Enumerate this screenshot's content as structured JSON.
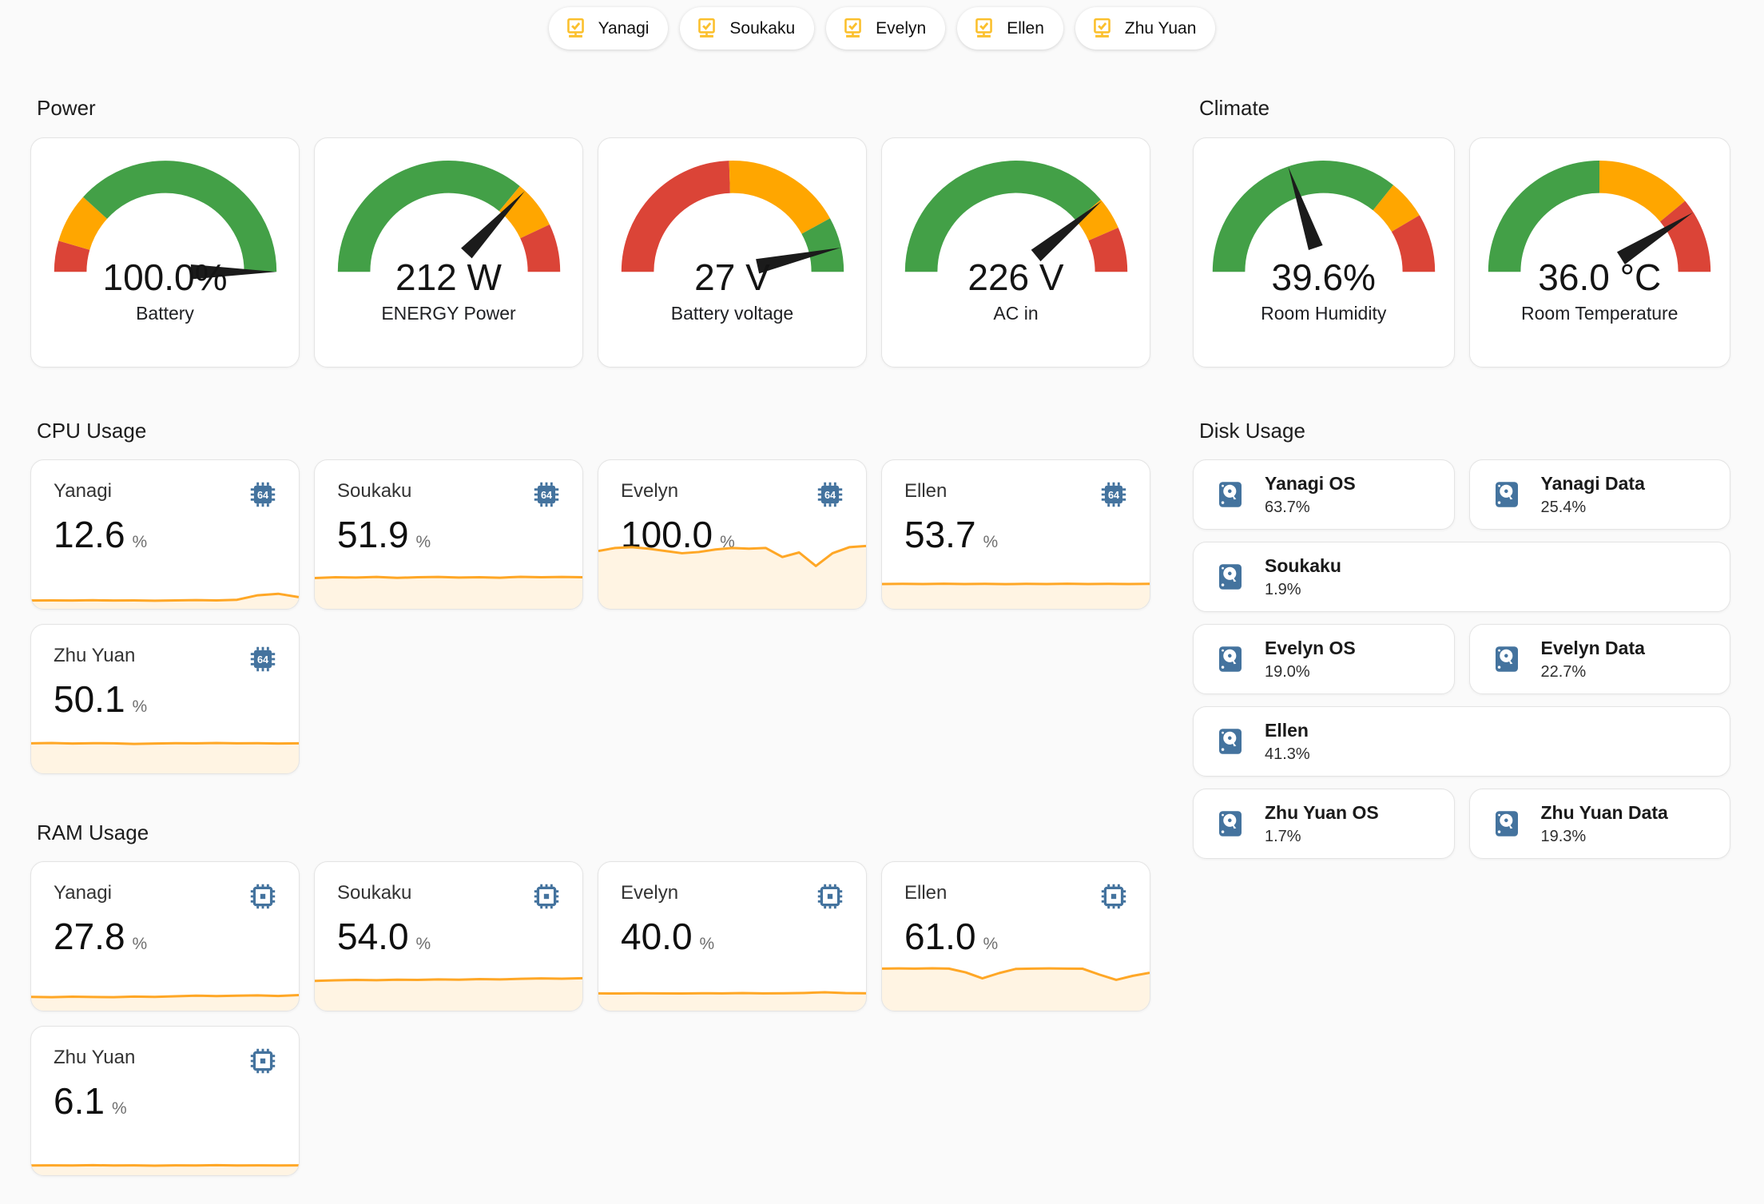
{
  "chips": [
    {
      "label": "Yanagi"
    },
    {
      "label": "Soukaku"
    },
    {
      "label": "Evelyn"
    },
    {
      "label": "Ellen"
    },
    {
      "label": "Zhu Yuan"
    }
  ],
  "sections": {
    "power": "Power",
    "climate": "Climate",
    "cpu": "CPU Usage",
    "disk": "Disk Usage",
    "ram": "RAM Usage"
  },
  "colors": {
    "green": "#43a047",
    "orange": "#ffa600",
    "red": "#db4437",
    "needle": "#1b1b1b",
    "spark": "#ffa726",
    "spark_fill": "rgba(255,167,38,0.13)",
    "icon_blue": "#44739e",
    "chip_yellow": "#fbc02d"
  },
  "icons": {
    "chip": "monitor-check-icon",
    "cpu": "cpu-64-bit-icon",
    "ram": "memory-icon",
    "disk": "harddisk-icon"
  },
  "gauges": {
    "power": [
      {
        "value": "100.0%",
        "name": "Battery",
        "needle": 1.0,
        "segments": [
          [
            "red",
            0,
            0.09
          ],
          [
            "orange",
            0.09,
            0.235
          ],
          [
            "green",
            0.235,
            1
          ]
        ]
      },
      {
        "value": "212 W",
        "name": "ENERGY Power",
        "needle": 0.74,
        "segments": [
          [
            "green",
            0,
            0.72
          ],
          [
            "orange",
            0.72,
            0.86
          ],
          [
            "red",
            0.86,
            1
          ]
        ]
      },
      {
        "value": "27 V",
        "name": "Battery voltage",
        "needle": 0.93,
        "segments": [
          [
            "red",
            0,
            0.49
          ],
          [
            "orange",
            0.49,
            0.84
          ],
          [
            "green",
            0.84,
            1
          ]
        ]
      },
      {
        "value": "226 V",
        "name": "AC in",
        "needle": 0.78,
        "segments": [
          [
            "green",
            0,
            0.775
          ],
          [
            "orange",
            0.775,
            0.87
          ],
          [
            "red",
            0.87,
            1
          ]
        ]
      }
    ],
    "climate": [
      {
        "value": "39.6%",
        "name": "Room Humidity",
        "needle": 0.396,
        "segments": [
          [
            "green",
            0,
            0.715
          ],
          [
            "orange",
            0.715,
            0.83
          ],
          [
            "red",
            0.83,
            1
          ]
        ]
      },
      {
        "value": "36.0 °C",
        "name": "Room Temperature",
        "needle": 0.82,
        "segments": [
          [
            "green",
            0,
            0.5
          ],
          [
            "orange",
            0.5,
            0.78
          ],
          [
            "red",
            0.78,
            1
          ]
        ]
      }
    ]
  },
  "cpu": {
    "cards": [
      {
        "name": "Yanagi",
        "value": "12.6",
        "unit": "%",
        "spark": [
          0.055,
          0.056,
          0.055,
          0.057,
          0.055,
          0.056,
          0.054,
          0.056,
          0.058,
          0.056,
          0.06,
          0.09,
          0.1,
          0.078
        ]
      },
      {
        "name": "Soukaku",
        "value": "51.9",
        "unit": "%",
        "spark": [
          0.205,
          0.21,
          0.208,
          0.212,
          0.206,
          0.21,
          0.212,
          0.208,
          0.21,
          0.207,
          0.213,
          0.21,
          0.212,
          0.21
        ]
      },
      {
        "name": "Evelyn",
        "value": "100.0",
        "unit": "%",
        "spark": [
          0.385,
          0.405,
          0.41,
          0.4,
          0.385,
          0.37,
          0.378,
          0.395,
          0.405,
          0.4,
          0.405,
          0.345,
          0.375,
          0.285,
          0.37,
          0.41,
          0.418
        ]
      },
      {
        "name": "Ellen",
        "value": "53.7",
        "unit": "%",
        "spark": [
          0.165,
          0.166,
          0.165,
          0.167,
          0.165,
          0.166,
          0.164,
          0.166,
          0.165,
          0.167,
          0.165,
          0.166,
          0.165,
          0.166
        ]
      },
      {
        "name": "Zhu Yuan",
        "value": "50.1",
        "unit": "%",
        "spark": [
          0.2,
          0.202,
          0.199,
          0.201,
          0.2,
          0.196,
          0.199,
          0.201,
          0.2,
          0.202,
          0.2,
          0.201,
          0.199,
          0.2
        ]
      }
    ]
  },
  "ram": {
    "cards": [
      {
        "name": "Yanagi",
        "value": "27.8",
        "unit": "%",
        "spark": [
          0.092,
          0.09,
          0.093,
          0.091,
          0.09,
          0.094,
          0.092,
          0.096,
          0.1,
          0.097,
          0.1,
          0.102,
          0.098,
          0.104
        ]
      },
      {
        "name": "Soukaku",
        "value": "54.0",
        "unit": "%",
        "spark": [
          0.198,
          0.202,
          0.205,
          0.203,
          0.206,
          0.205,
          0.208,
          0.206,
          0.21,
          0.208,
          0.212,
          0.215,
          0.213,
          0.216
        ]
      },
      {
        "name": "Evelyn",
        "value": "40.0",
        "unit": "%",
        "spark": [
          0.115,
          0.114,
          0.116,
          0.115,
          0.114,
          0.116,
          0.115,
          0.117,
          0.115,
          0.116,
          0.118,
          0.122,
          0.117,
          0.116
        ]
      },
      {
        "name": "Ellen",
        "value": "61.0",
        "unit": "%",
        "spark": [
          0.28,
          0.281,
          0.28,
          0.282,
          0.28,
          0.255,
          0.215,
          0.25,
          0.278,
          0.28,
          0.281,
          0.28,
          0.279,
          0.24,
          0.205,
          0.232,
          0.252
        ]
      },
      {
        "name": "Zhu Yuan",
        "value": "6.1",
        "unit": "%",
        "spark": [
          0.065,
          0.066,
          0.065,
          0.067,
          0.065,
          0.066,
          0.064,
          0.066,
          0.065,
          0.067,
          0.065,
          0.066,
          0.065,
          0.066
        ]
      }
    ]
  },
  "disk": {
    "cards": [
      {
        "name": "Yanagi OS",
        "value": "63.7%"
      },
      {
        "name": "Yanagi Data",
        "value": "25.4%"
      },
      {
        "name": "Soukaku",
        "value": "1.9%"
      },
      {
        "name": "Evelyn OS",
        "value": "19.0%"
      },
      {
        "name": "Evelyn Data",
        "value": "22.7%"
      },
      {
        "name": "Ellen",
        "value": "41.3%"
      },
      {
        "name": "Zhu Yuan OS",
        "value": "1.7%"
      },
      {
        "name": "Zhu Yuan Data",
        "value": "19.3%"
      }
    ]
  }
}
